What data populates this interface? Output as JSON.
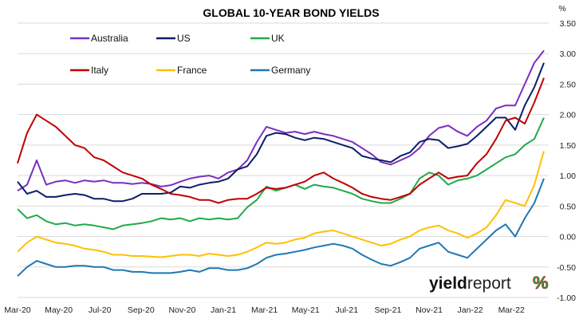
{
  "chart_data": {
    "type": "line",
    "title": "GLOBAL 10-YEAR BOND YIELDS",
    "unit": "%",
    "xlabel": "",
    "ylabel": "",
    "ylim": [
      -1.0,
      3.5
    ],
    "yticks": [
      -1.0,
      -0.5,
      0.0,
      0.5,
      1.0,
      1.5,
      2.0,
      2.5,
      3.0,
      3.5
    ],
    "ytick_labels": [
      "-1.00",
      "-0.50",
      "0.00",
      "0.50",
      "1.00",
      "1.50",
      "2.00",
      "2.50",
      "3.00",
      "3.50"
    ],
    "xticks": [
      "Mar-20",
      "May-20",
      "Jul-20",
      "Sep-20",
      "Nov-20",
      "Jan-21",
      "Mar-21",
      "May-21",
      "Jul-21",
      "Sep-21",
      "Nov-21",
      "Jan-22",
      "Mar-22"
    ],
    "x_index": [
      0,
      2,
      4,
      6,
      8,
      10,
      12,
      14,
      16,
      18,
      20,
      22,
      24,
      26,
      28,
      30,
      32,
      34,
      36,
      38,
      40,
      42,
      44,
      46,
      48,
      50,
      52,
      54,
      56,
      58,
      60,
      62,
      64,
      66,
      68,
      70,
      72,
      74,
      76,
      78,
      80,
      82,
      84,
      86,
      88,
      90,
      92,
      94,
      96,
      98,
      100,
      102,
      104,
      106,
      108,
      110
    ],
    "x_range": [
      0,
      111
    ],
    "grid": true,
    "legend_position": "top-left",
    "series": [
      {
        "name": "Australia",
        "color": "#7B2FBE",
        "values": [
          0.75,
          0.85,
          1.25,
          0.85,
          0.9,
          0.92,
          0.88,
          0.92,
          0.9,
          0.92,
          0.88,
          0.88,
          0.86,
          0.88,
          0.86,
          0.82,
          0.84,
          0.9,
          0.95,
          0.98,
          1.0,
          0.95,
          1.05,
          1.1,
          1.25,
          1.55,
          1.8,
          1.75,
          1.7,
          1.72,
          1.68,
          1.72,
          1.68,
          1.65,
          1.6,
          1.55,
          1.45,
          1.35,
          1.22,
          1.18,
          1.25,
          1.32,
          1.45,
          1.65,
          1.78,
          1.82,
          1.72,
          1.65,
          1.8,
          1.9,
          2.1,
          2.15,
          2.15,
          2.5,
          2.85,
          3.05
        ]
      },
      {
        "name": "US",
        "color": "#0B1F65",
        "values": [
          0.9,
          0.7,
          0.75,
          0.65,
          0.65,
          0.68,
          0.7,
          0.68,
          0.62,
          0.62,
          0.58,
          0.58,
          0.62,
          0.7,
          0.7,
          0.7,
          0.72,
          0.82,
          0.8,
          0.85,
          0.88,
          0.9,
          0.95,
          1.1,
          1.15,
          1.35,
          1.65,
          1.7,
          1.68,
          1.62,
          1.58,
          1.62,
          1.6,
          1.55,
          1.5,
          1.45,
          1.32,
          1.28,
          1.25,
          1.22,
          1.32,
          1.38,
          1.55,
          1.6,
          1.58,
          1.45,
          1.48,
          1.52,
          1.65,
          1.8,
          1.95,
          1.95,
          1.75,
          2.15,
          2.45,
          2.85
        ]
      },
      {
        "name": "UK",
        "color": "#1FAA4A",
        "values": [
          0.45,
          0.3,
          0.35,
          0.25,
          0.2,
          0.22,
          0.18,
          0.2,
          0.18,
          0.15,
          0.12,
          0.18,
          0.2,
          0.22,
          0.25,
          0.3,
          0.28,
          0.3,
          0.25,
          0.3,
          0.28,
          0.3,
          0.28,
          0.3,
          0.48,
          0.6,
          0.82,
          0.75,
          0.8,
          0.85,
          0.78,
          0.85,
          0.82,
          0.8,
          0.75,
          0.7,
          0.62,
          0.58,
          0.55,
          0.55,
          0.62,
          0.7,
          0.95,
          1.05,
          1.0,
          0.85,
          0.92,
          0.95,
          1.0,
          1.1,
          1.2,
          1.3,
          1.35,
          1.5,
          1.6,
          1.95
        ]
      },
      {
        "name": "Italy",
        "color": "#C00000",
        "values": [
          1.2,
          1.7,
          2.0,
          1.9,
          1.8,
          1.65,
          1.5,
          1.45,
          1.3,
          1.25,
          1.15,
          1.05,
          1.0,
          0.95,
          0.85,
          0.78,
          0.7,
          0.68,
          0.65,
          0.6,
          0.6,
          0.55,
          0.6,
          0.62,
          0.62,
          0.7,
          0.8,
          0.78,
          0.8,
          0.85,
          0.9,
          1.0,
          1.05,
          0.95,
          0.88,
          0.8,
          0.7,
          0.65,
          0.62,
          0.6,
          0.65,
          0.7,
          0.85,
          0.95,
          1.05,
          0.95,
          0.98,
          1.0,
          1.2,
          1.35,
          1.6,
          1.9,
          1.95,
          1.85,
          2.2,
          2.6
        ]
      },
      {
        "name": "France",
        "color": "#FFC000",
        "values": [
          -0.25,
          -0.1,
          0.0,
          -0.05,
          -0.1,
          -0.12,
          -0.15,
          -0.2,
          -0.22,
          -0.25,
          -0.3,
          -0.3,
          -0.32,
          -0.32,
          -0.33,
          -0.34,
          -0.32,
          -0.3,
          -0.3,
          -0.32,
          -0.28,
          -0.3,
          -0.32,
          -0.3,
          -0.25,
          -0.18,
          -0.1,
          -0.12,
          -0.1,
          -0.05,
          -0.02,
          0.05,
          0.08,
          0.1,
          0.05,
          0.0,
          -0.05,
          -0.1,
          -0.15,
          -0.12,
          -0.05,
          0.0,
          0.1,
          0.15,
          0.18,
          0.1,
          0.05,
          -0.02,
          0.05,
          0.15,
          0.35,
          0.6,
          0.55,
          0.5,
          0.85,
          1.4
        ]
      },
      {
        "name": "Germany",
        "color": "#1F77B4",
        "values": [
          -0.65,
          -0.5,
          -0.4,
          -0.45,
          -0.5,
          -0.5,
          -0.48,
          -0.48,
          -0.5,
          -0.5,
          -0.55,
          -0.55,
          -0.58,
          -0.58,
          -0.6,
          -0.6,
          -0.6,
          -0.58,
          -0.55,
          -0.58,
          -0.52,
          -0.52,
          -0.55,
          -0.55,
          -0.52,
          -0.45,
          -0.35,
          -0.3,
          -0.28,
          -0.25,
          -0.22,
          -0.18,
          -0.15,
          -0.12,
          -0.15,
          -0.2,
          -0.3,
          -0.38,
          -0.45,
          -0.48,
          -0.42,
          -0.35,
          -0.2,
          -0.15,
          -0.1,
          -0.25,
          -0.3,
          -0.35,
          -0.2,
          -0.05,
          0.1,
          0.2,
          0.0,
          0.3,
          0.55,
          0.95
        ]
      }
    ]
  },
  "branding": {
    "logo_text_bold": "yield",
    "logo_text_normal": "report",
    "logo_symbol": "%",
    "logo_symbol_green": "#1FAA4A",
    "logo_symbol_red": "#C00000"
  }
}
